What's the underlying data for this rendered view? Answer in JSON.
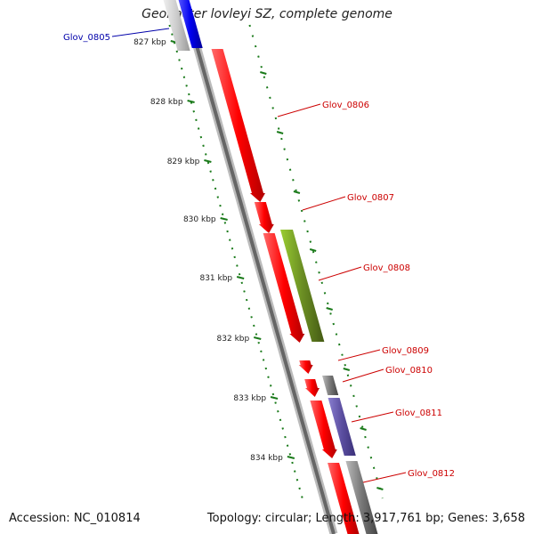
{
  "title": "Geobacter lovleyi SZ, complete genome",
  "footer": {
    "accession": "Accession: NC_010814",
    "stats": "Topology: circular; Length: 3,917,761 bp; Genes: 3,658"
  },
  "ruler": {
    "ticks": [
      {
        "kbp": 827,
        "label": "827 kbp"
      },
      {
        "kbp": 828,
        "label": "828 kbp"
      },
      {
        "kbp": 829,
        "label": "829 kbp"
      },
      {
        "kbp": 830,
        "label": "830 kbp"
      },
      {
        "kbp": 831,
        "label": "831 kbp"
      },
      {
        "kbp": 832,
        "label": "832 kbp"
      },
      {
        "kbp": 833,
        "label": "833 kbp"
      },
      {
        "kbp": 834,
        "label": "834 kbp"
      }
    ]
  },
  "genes": [
    {
      "name": "Glov_0805",
      "color": "#0000dd",
      "strand": "outer-left"
    },
    {
      "name": "Glov_0806",
      "color": "#ee0000",
      "strand": "forward"
    },
    {
      "name": "Glov_0807",
      "color": "#ee0000",
      "strand": "forward"
    },
    {
      "name": "Glov_0808",
      "color": "#6b8e23",
      "strand": "reverse"
    },
    {
      "name": "Glov_0809",
      "color": "#ee0000",
      "strand": "forward"
    },
    {
      "name": "Glov_0810",
      "color": "#ee0000",
      "strand": "forward"
    },
    {
      "name": "Glov_0811",
      "color": "#5b4ea0",
      "strand": "reverse"
    },
    {
      "name": "Glov_0812",
      "color": "#ee0000",
      "strand": "forward"
    }
  ],
  "colors": {
    "forward": "#ee0000",
    "backbone": "#777777",
    "tick": "#1a7a1a",
    "label_fwd": "#cc0000",
    "label_left": "#0000aa"
  }
}
